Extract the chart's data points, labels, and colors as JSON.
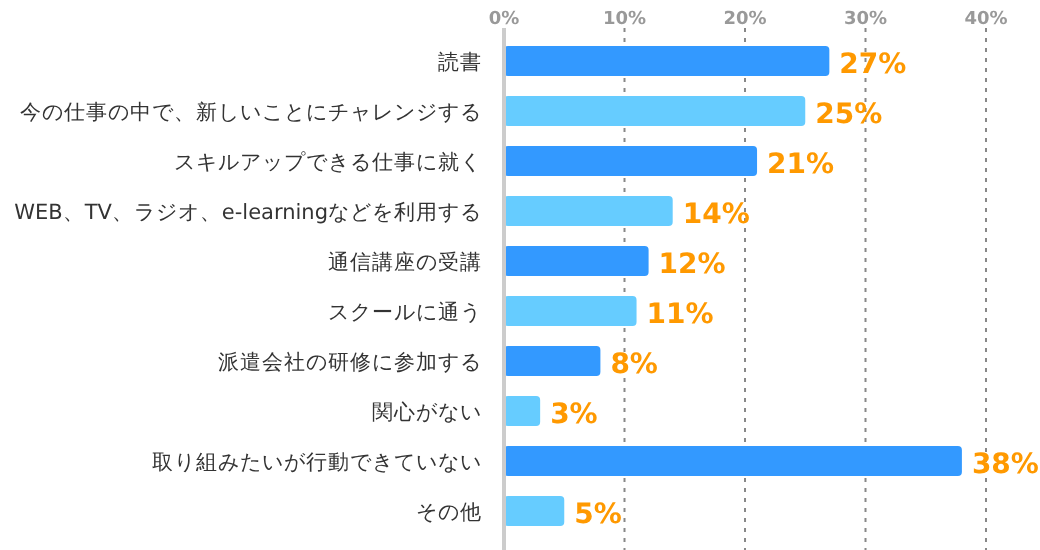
{
  "chart_data": {
    "type": "bar",
    "orientation": "horizontal",
    "categories": [
      "読書",
      "今の仕事の中で、新しいことにチャレンジする",
      "スキルアップできる仕事に就く",
      "WEB、TV、ラジオ、e-learningなどを利用する",
      "通信講座の受講",
      "スクールに通う",
      "派遣会社の研修に参加する",
      "関心がない",
      "取り組みたいが行動できていない",
      "その他"
    ],
    "values": [
      27,
      25,
      21,
      14,
      12,
      11,
      8,
      3,
      38,
      5
    ],
    "colors": [
      "#3399ff",
      "#66ccff",
      "#3399ff",
      "#66ccff",
      "#3399ff",
      "#66ccff",
      "#3399ff",
      "#66ccff",
      "#3399ff",
      "#66ccff"
    ],
    "value_labels": [
      "27%",
      "25%",
      "21%",
      "14%",
      "12%",
      "11%",
      "8%",
      "3%",
      "38%",
      "5%"
    ],
    "xlim": [
      0,
      40
    ],
    "xticks": [
      {
        "value": 0,
        "label": "0%"
      },
      {
        "value": 10,
        "label": "10%"
      },
      {
        "value": 20,
        "label": "20%"
      },
      {
        "value": 30,
        "label": "30%"
      },
      {
        "value": 40,
        "label": "40%"
      }
    ],
    "grid": "x"
  }
}
